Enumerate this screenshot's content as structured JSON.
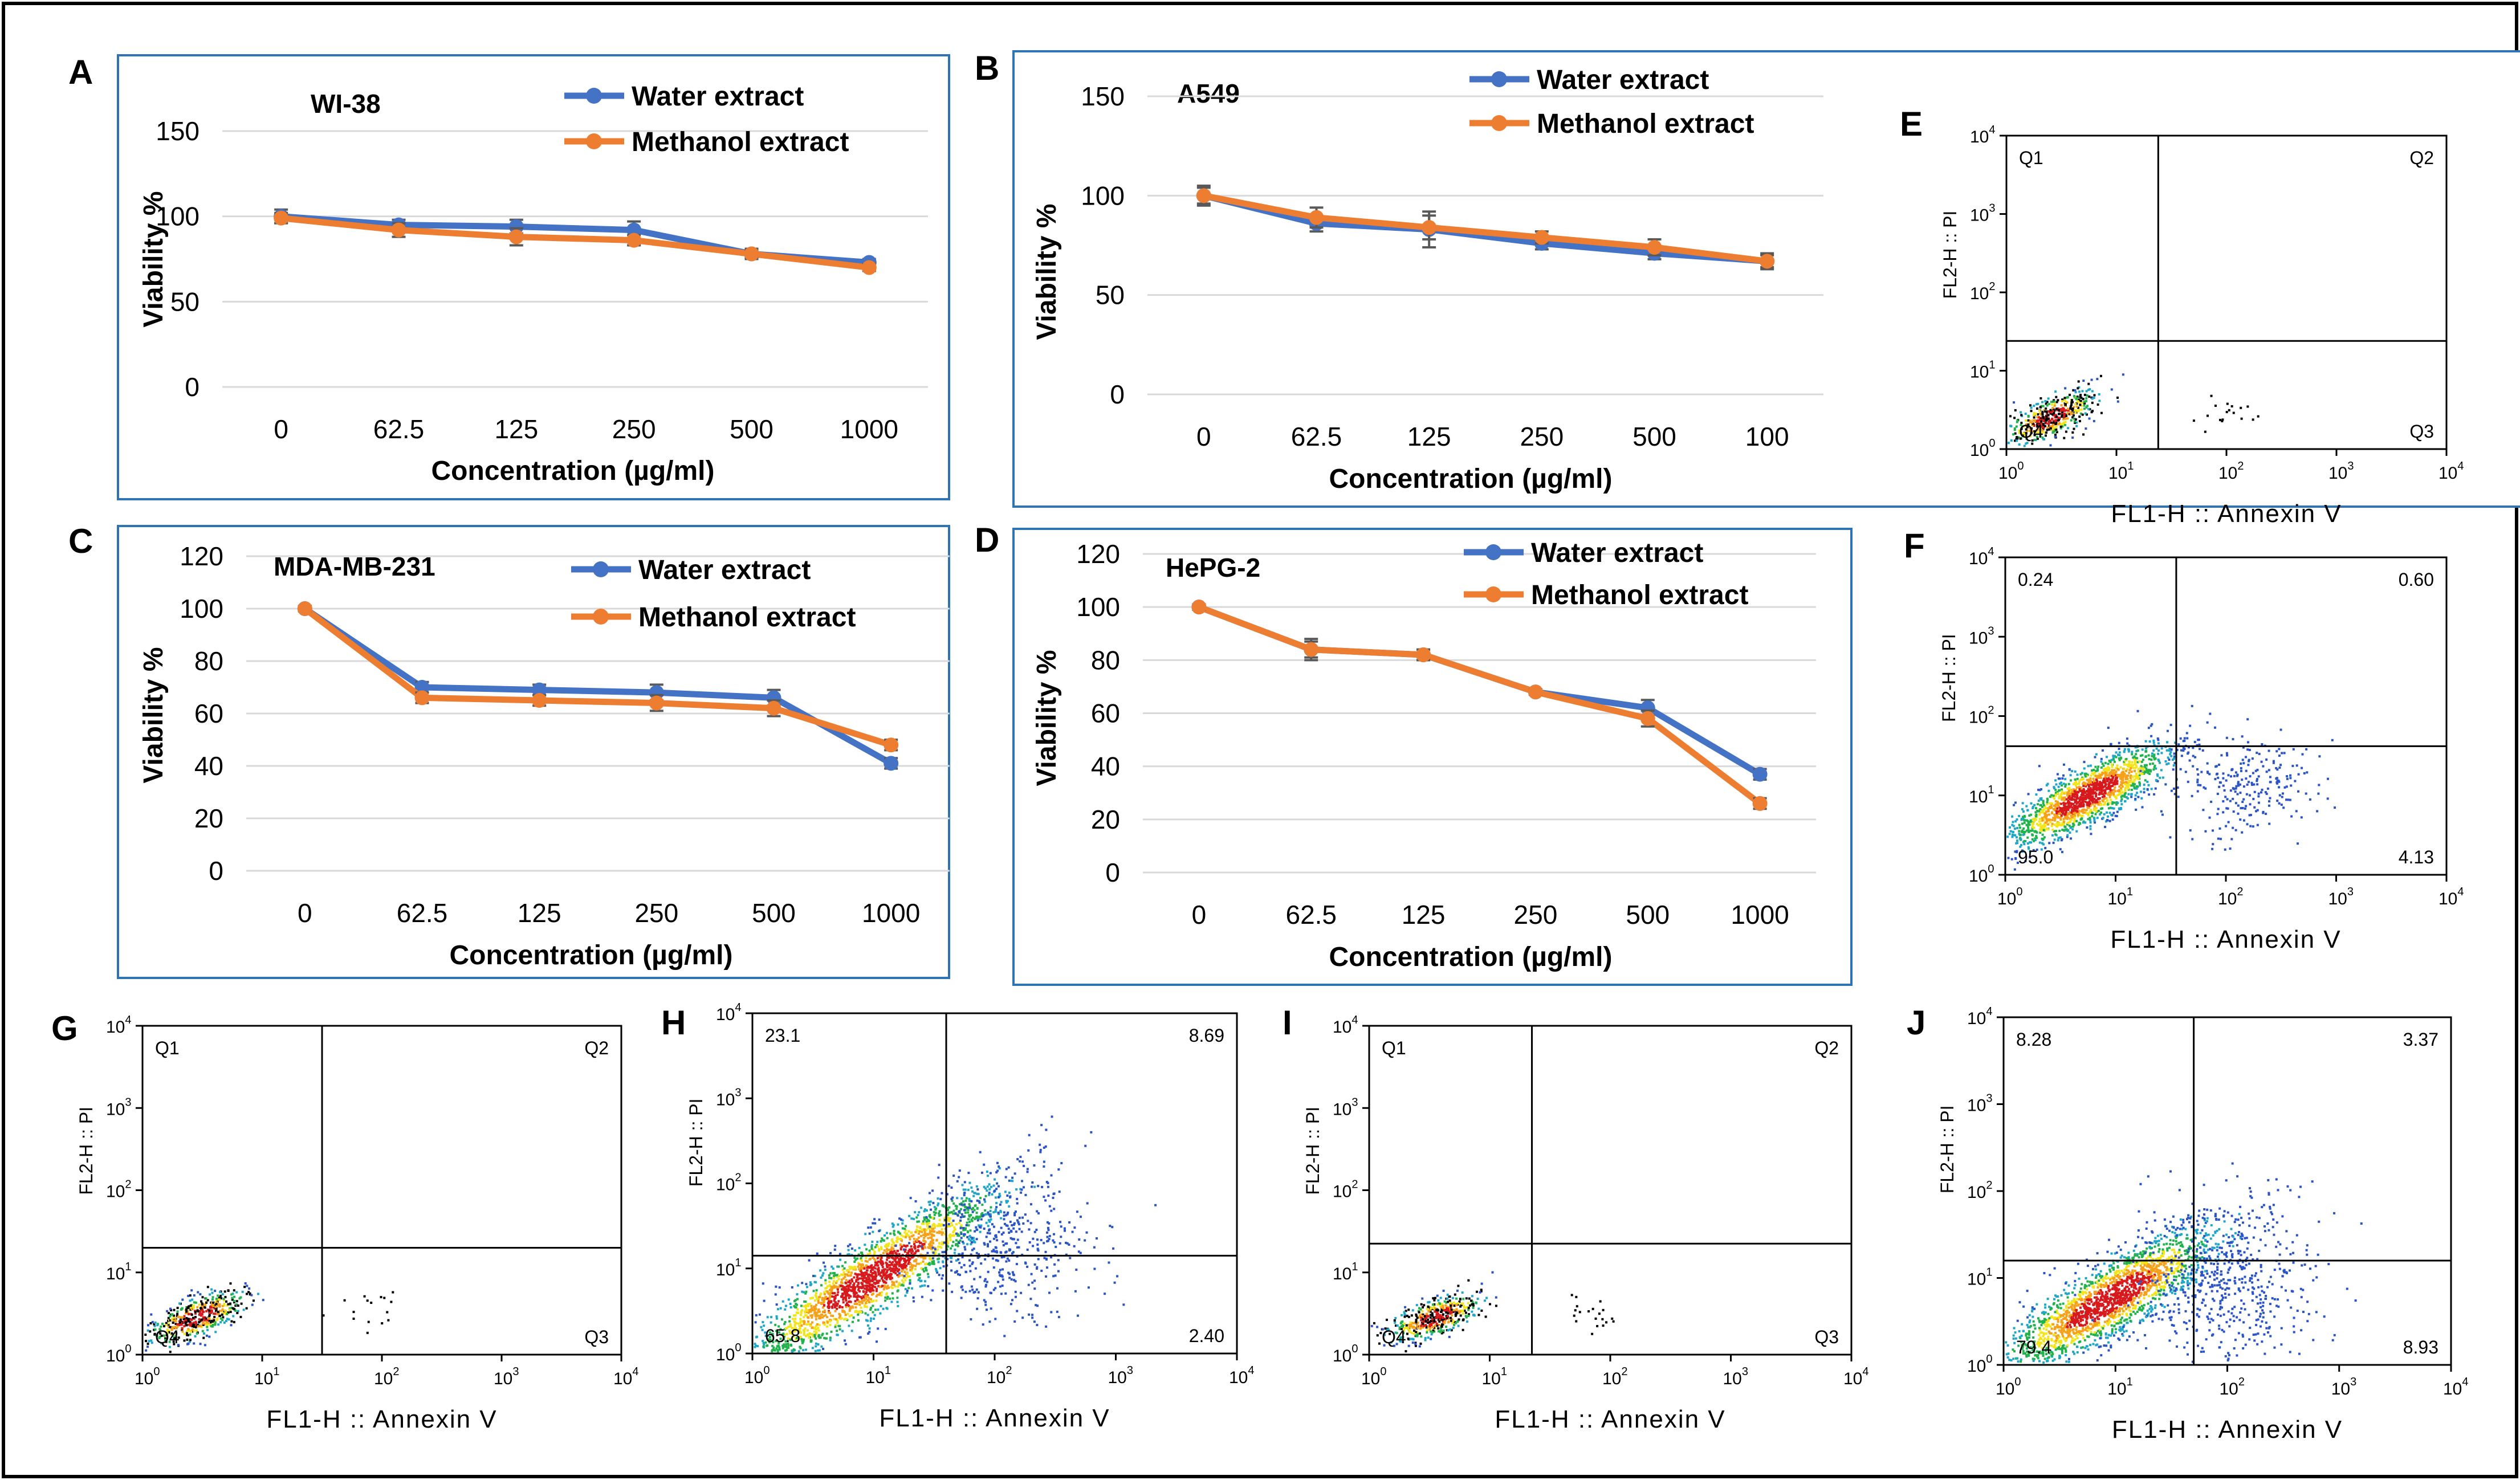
{
  "figure": {
    "colors": {
      "water": "#4472c4",
      "methanol": "#ed7d31",
      "panel_border": "#2e74b5",
      "grid": "#d9d9d9",
      "text": "#000000",
      "quad_line": "#000000"
    }
  },
  "chart_data": [
    {
      "type": "line",
      "panel": "A",
      "title": "WI-38",
      "categories": [
        "0",
        "62.5",
        "125",
        "250",
        "500",
        "1000"
      ],
      "series": [
        {
          "name": "Water extract",
          "values": [
            100,
            95,
            94,
            92,
            78,
            73
          ],
          "errors": [
            4,
            3,
            4,
            5,
            3,
            2
          ]
        },
        {
          "name": "Methanol extract",
          "values": [
            99,
            92,
            88,
            86,
            78,
            70
          ],
          "errors": [
            3,
            4,
            5,
            3,
            2,
            2
          ]
        }
      ],
      "xlabel": "Concentration (µg/ml)",
      "ylabel": "Viability %",
      "ylim": [
        0,
        150
      ],
      "yticks": [
        "0",
        "50",
        "100",
        "150"
      ]
    },
    {
      "type": "line",
      "panel": "B",
      "title": "A549",
      "categories": [
        "0",
        "62.5",
        "125",
        "250",
        "500",
        "100"
      ],
      "series": [
        {
          "name": "Water extract",
          "values": [
            100,
            86,
            83,
            76,
            71,
            67
          ],
          "errors": [
            5,
            4,
            9,
            3,
            3,
            4
          ]
        },
        {
          "name": "Methanol extract",
          "values": [
            100,
            89,
            84,
            79,
            74,
            67
          ],
          "errors": [
            4,
            5,
            6,
            3,
            4,
            3
          ]
        }
      ],
      "xlabel": "Concentration (µg/ml)",
      "ylabel": "Viability %",
      "ylim": [
        0,
        150
      ],
      "yticks": [
        "0",
        "50",
        "100",
        "150"
      ]
    },
    {
      "type": "line",
      "panel": "C",
      "title": "MDA-MB-231",
      "categories": [
        "0",
        "62.5",
        "125",
        "250",
        "500",
        "1000"
      ],
      "series": [
        {
          "name": "Water extract",
          "values": [
            100,
            70,
            69,
            68,
            66,
            41
          ],
          "errors": [
            1,
            2,
            2,
            3,
            3,
            2
          ]
        },
        {
          "name": "Methanol extract",
          "values": [
            100,
            66,
            65,
            64,
            62,
            48
          ],
          "errors": [
            1,
            2,
            2,
            3,
            3,
            2
          ]
        }
      ],
      "xlabel": "Concentration (µg/ml)",
      "ylabel": "Viability %",
      "ylim": [
        0,
        120
      ],
      "yticks": [
        "0",
        "20",
        "40",
        "60",
        "80",
        "100",
        "120"
      ]
    },
    {
      "type": "line",
      "panel": "D",
      "title": "HePG-2",
      "categories": [
        "0",
        "62.5",
        "125",
        "250",
        "500",
        "1000"
      ],
      "series": [
        {
          "name": "Water extract",
          "values": [
            100,
            84,
            82,
            68,
            62,
            37
          ],
          "errors": [
            1,
            4,
            2,
            1,
            3,
            2
          ]
        },
        {
          "name": "Methanol extract",
          "values": [
            100,
            84,
            82,
            68,
            58,
            26
          ],
          "errors": [
            1,
            3,
            2,
            1,
            3,
            2
          ]
        }
      ],
      "xlabel": "Concentration (µg/ml)",
      "ylabel": "Viability %",
      "ylim": [
        0,
        120
      ],
      "yticks": [
        "0",
        "20",
        "40",
        "60",
        "80",
        "100",
        "120"
      ]
    },
    {
      "type": "scatter",
      "panel": "E",
      "subtype": "flow-cytometry",
      "xlabel": "FL1-H :: Annexin V",
      "ylabel": "FL2-H :: PI",
      "xlim_log10": [
        0,
        4
      ],
      "ylim_log10": [
        0,
        4
      ],
      "ticks": [
        "10",
        "10",
        "10",
        "10",
        "10"
      ],
      "tick_exponents": [
        "0",
        "1",
        "2",
        "3",
        "4"
      ],
      "gate_log10": {
        "x": 1.38,
        "y": 1.38
      },
      "quadrant_labels": [
        "Q1",
        "Q2",
        "Q3",
        "Q4"
      ],
      "populations": [
        {
          "cx": 0.4,
          "cy": 0.4,
          "sx": 0.22,
          "sy": 0.18,
          "rho": 0.7,
          "n": 520,
          "style": "dense"
        },
        {
          "cx": 2.0,
          "cy": 0.5,
          "sx": 0.12,
          "sy": 0.12,
          "rho": 0.0,
          "n": 18,
          "style": "sparse"
        }
      ]
    },
    {
      "type": "scatter",
      "panel": "F",
      "subtype": "flow-cytometry",
      "xlabel": "FL1-H :: Annexin V",
      "ylabel": "FL2-H :: PI",
      "xlim_log10": [
        0,
        4
      ],
      "ylim_log10": [
        0,
        4
      ],
      "ticks": [
        "10",
        "10",
        "10",
        "10",
        "10"
      ],
      "tick_exponents": [
        "0",
        "1",
        "2",
        "3",
        "4"
      ],
      "gate_log10": {
        "x": 1.55,
        "y": 1.62
      },
      "quadrant_labels": [
        "0.24",
        "0.60",
        "4.13",
        "95.0"
      ],
      "populations": [
        {
          "cx": 0.75,
          "cy": 1.0,
          "sx": 0.38,
          "sy": 0.33,
          "rho": 0.82,
          "n": 1600,
          "style": "dense"
        },
        {
          "cx": 2.2,
          "cy": 1.1,
          "sx": 0.32,
          "sy": 0.3,
          "rho": 0.0,
          "n": 260,
          "style": "sparse"
        }
      ]
    },
    {
      "type": "scatter",
      "panel": "G",
      "subtype": "flow-cytometry",
      "xlabel": "FL1-H :: Annexin V",
      "ylabel": "FL2-H :: PI",
      "xlim_log10": [
        0,
        4
      ],
      "ylim_log10": [
        0,
        4
      ],
      "ticks": [
        "10",
        "10",
        "10",
        "10",
        "10"
      ],
      "tick_exponents": [
        "0",
        "1",
        "2",
        "3",
        "4"
      ],
      "gate_log10": {
        "x": 1.5,
        "y": 1.3
      },
      "quadrant_labels": [
        "Q1",
        "Q2",
        "Q3",
        "Q4"
      ],
      "populations": [
        {
          "cx": 0.45,
          "cy": 0.45,
          "sx": 0.22,
          "sy": 0.17,
          "rho": 0.7,
          "n": 520,
          "style": "dense"
        },
        {
          "cx": 1.95,
          "cy": 0.6,
          "sx": 0.15,
          "sy": 0.15,
          "rho": 0.0,
          "n": 16,
          "style": "sparse"
        }
      ]
    },
    {
      "type": "scatter",
      "panel": "H",
      "subtype": "flow-cytometry",
      "xlabel": "FL1-H :: Annexin V",
      "ylabel": "FL2-H :: PI",
      "xlim_log10": [
        0,
        4
      ],
      "ylim_log10": [
        0,
        4
      ],
      "ticks": [
        "10",
        "10",
        "10",
        "10",
        "10"
      ],
      "tick_exponents": [
        "0",
        "1",
        "2",
        "3",
        "4"
      ],
      "gate_log10": {
        "x": 1.6,
        "y": 1.15
      },
      "quadrant_labels": [
        "23.1",
        "8.69",
        "2.40",
        "65.8"
      ],
      "populations": [
        {
          "cx": 1.0,
          "cy": 0.9,
          "sx": 0.55,
          "sy": 0.55,
          "rho": 0.9,
          "n": 2100,
          "style": "dense"
        },
        {
          "cx": 2.1,
          "cy": 1.25,
          "sx": 0.35,
          "sy": 0.4,
          "rho": 0.0,
          "n": 420,
          "style": "sparse"
        }
      ]
    },
    {
      "type": "scatter",
      "panel": "I",
      "subtype": "flow-cytometry",
      "xlabel": "FL1-H :: Annexin V",
      "ylabel": "FL2-H :: PI",
      "xlim_log10": [
        0,
        4
      ],
      "ylim_log10": [
        0,
        4
      ],
      "ticks": [
        "10",
        "10",
        "10",
        "10",
        "10"
      ],
      "tick_exponents": [
        "0",
        "1",
        "2",
        "3",
        "4"
      ],
      "gate_log10": {
        "x": 1.35,
        "y": 1.35
      },
      "quadrant_labels": [
        "Q1",
        "Q2",
        "Q3",
        "Q4"
      ],
      "populations": [
        {
          "cx": 0.55,
          "cy": 0.45,
          "sx": 0.2,
          "sy": 0.15,
          "rho": 0.65,
          "n": 480,
          "style": "dense"
        },
        {
          "cx": 1.85,
          "cy": 0.5,
          "sx": 0.15,
          "sy": 0.12,
          "rho": 0.0,
          "n": 20,
          "style": "sparse"
        }
      ]
    },
    {
      "type": "scatter",
      "panel": "J",
      "subtype": "flow-cytometry",
      "xlabel": "FL1-H :: Annexin V",
      "ylabel": "FL2-H :: PI",
      "xlim_log10": [
        0,
        4
      ],
      "ylim_log10": [
        0,
        4
      ],
      "ticks": [
        "10",
        "10",
        "10",
        "10",
        "10"
      ],
      "tick_exponents": [
        "0",
        "1",
        "2",
        "3",
        "4"
      ],
      "gate_log10": {
        "x": 1.7,
        "y": 1.2
      },
      "quadrant_labels": [
        "8.28",
        "3.37",
        "8.93",
        "79.4"
      ],
      "populations": [
        {
          "cx": 0.95,
          "cy": 0.75,
          "sx": 0.5,
          "sy": 0.42,
          "rho": 0.85,
          "n": 2100,
          "style": "dense"
        },
        {
          "cx": 2.0,
          "cy": 0.9,
          "sx": 0.4,
          "sy": 0.5,
          "rho": 0.0,
          "n": 520,
          "style": "sparse"
        }
      ]
    }
  ]
}
